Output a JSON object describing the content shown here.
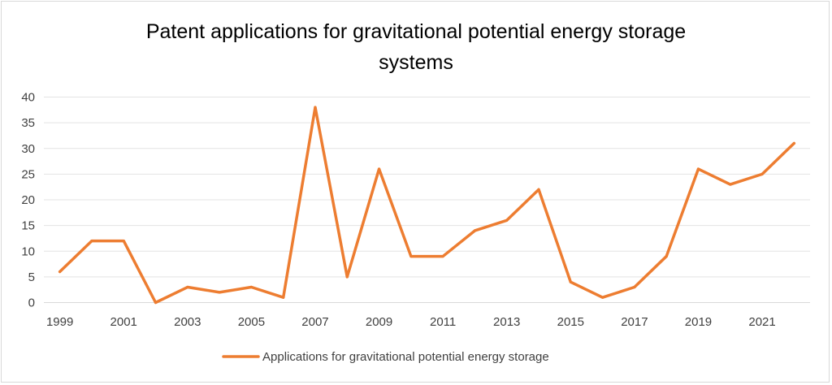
{
  "chart_data": {
    "type": "line",
    "title": "Patent applications for gravitational potential energy storage systems",
    "title_lines": [
      "Patent applications for gravitational potential energy storage",
      "systems"
    ],
    "xlabel": "",
    "ylabel": "",
    "ylim": [
      0,
      40
    ],
    "yticks": [
      "0",
      "5",
      "10",
      "15",
      "20",
      "25",
      "30",
      "35",
      "40"
    ],
    "x": [
      1999,
      2000,
      2001,
      2002,
      2003,
      2004,
      2005,
      2006,
      2007,
      2008,
      2009,
      2010,
      2011,
      2012,
      2013,
      2014,
      2015,
      2016,
      2017,
      2018,
      2019,
      2020,
      2021,
      2022
    ],
    "xticks": [
      "1999",
      "2001",
      "2003",
      "2005",
      "2007",
      "2009",
      "2011",
      "2013",
      "2015",
      "2017",
      "2019",
      "2021"
    ],
    "series": [
      {
        "name": "Applications for gravitational potential energy storage",
        "color": "#ed7d31",
        "values": [
          6,
          12,
          12,
          0,
          3,
          2,
          3,
          1,
          38,
          5,
          26,
          9,
          9,
          14,
          16,
          22,
          4,
          1,
          3,
          9,
          26,
          23,
          25,
          31
        ]
      }
    ],
    "grid": true,
    "legend": "bottom"
  }
}
